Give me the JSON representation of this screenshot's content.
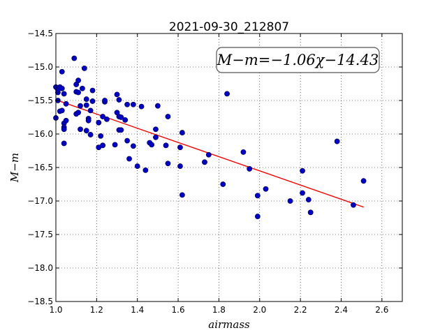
{
  "chart_data": {
    "type": "scatter",
    "title": "2021-09-30_212807",
    "xlabel": "airmass",
    "ylabel": "M−m",
    "xlim": [
      1.0,
      2.7
    ],
    "ylim": [
      -18.5,
      -14.5
    ],
    "y_inverted": true,
    "grid": true,
    "x_ticks": [
      1.0,
      1.2,
      1.4,
      1.6,
      1.8,
      2.0,
      2.2,
      2.4,
      2.6
    ],
    "x_tick_labels": [
      "1.0",
      "1.2",
      "1.4",
      "1.6",
      "1.8",
      "2.0",
      "2.2",
      "2.4",
      "2.6"
    ],
    "y_ticks": [
      -14.5,
      -15.0,
      -15.5,
      -16.0,
      -16.5,
      -17.0,
      -17.5,
      -18.0,
      -18.5
    ],
    "y_tick_labels": [
      "−14.5",
      "−15.0",
      "−15.5",
      "−16.0",
      "−16.5",
      "−17.0",
      "−17.5",
      "−18.0",
      "−18.5"
    ],
    "annotation": "M−m=−1.06χ−14.43",
    "fit": {
      "slope": -1.06,
      "intercept": -14.43,
      "x_range": [
        1.0,
        2.51
      ],
      "color": "#ff0000"
    },
    "point_color": "#0000cc",
    "points": [
      [
        1.0,
        -15.3
      ],
      [
        1.01,
        -15.5
      ],
      [
        1.01,
        -15.38
      ],
      [
        1.01,
        -15.34
      ],
      [
        1.0,
        -15.76
      ],
      [
        1.02,
        -15.3
      ],
      [
        1.02,
        -15.66
      ],
      [
        1.03,
        -15.07
      ],
      [
        1.03,
        -15.32
      ],
      [
        1.04,
        -15.4
      ],
      [
        1.03,
        -15.65
      ],
      [
        1.04,
        -15.84
      ],
      [
        1.04,
        -15.9
      ],
      [
        1.04,
        -15.93
      ],
      [
        1.05,
        -15.55
      ],
      [
        1.04,
        -16.14
      ],
      [
        1.05,
        -15.8
      ],
      [
        1.09,
        -14.87
      ],
      [
        1.1,
        -15.37
      ],
      [
        1.1,
        -15.26
      ],
      [
        1.1,
        -15.7
      ],
      [
        1.11,
        -15.2
      ],
      [
        1.11,
        -15.38
      ],
      [
        1.12,
        -15.58
      ],
      [
        1.11,
        -15.68
      ],
      [
        1.13,
        -15.32
      ],
      [
        1.12,
        -15.93
      ],
      [
        1.14,
        -15.02
      ],
      [
        1.15,
        -15.48
      ],
      [
        1.15,
        -15.57
      ],
      [
        1.15,
        -15.95
      ],
      [
        1.16,
        -15.77
      ],
      [
        1.16,
        -15.8
      ],
      [
        1.17,
        -16.01
      ],
      [
        1.17,
        -15.65
      ],
      [
        1.18,
        -15.35
      ],
      [
        1.18,
        -15.51
      ],
      [
        1.21,
        -15.83
      ],
      [
        1.21,
        -16.2
      ],
      [
        1.22,
        -16.03
      ],
      [
        1.23,
        -15.74
      ],
      [
        1.24,
        -15.52
      ],
      [
        1.24,
        -15.5
      ],
      [
        1.25,
        -15.78
      ],
      [
        1.23,
        -16.17
      ],
      [
        1.29,
        -16.16
      ],
      [
        1.3,
        -15.41
      ],
      [
        1.3,
        -15.68
      ],
      [
        1.31,
        -15.49
      ],
      [
        1.31,
        -15.94
      ],
      [
        1.31,
        -15.74
      ],
      [
        1.32,
        -15.75
      ],
      [
        1.32,
        -15.94
      ],
      [
        1.34,
        -15.79
      ],
      [
        1.35,
        -15.56
      ],
      [
        1.35,
        -16.1
      ],
      [
        1.36,
        -16.37
      ],
      [
        1.38,
        -16.18
      ],
      [
        1.38,
        -15.56
      ],
      [
        1.4,
        -16.48
      ],
      [
        1.42,
        -15.59
      ],
      [
        1.44,
        -16.54
      ],
      [
        1.46,
        -16.13
      ],
      [
        1.47,
        -16.16
      ],
      [
        1.49,
        -16.05
      ],
      [
        1.49,
        -15.93
      ],
      [
        1.5,
        -15.58
      ],
      [
        1.54,
        -16.17
      ],
      [
        1.55,
        -15.74
      ],
      [
        1.55,
        -16.44
      ],
      [
        1.61,
        -16.2
      ],
      [
        1.62,
        -15.98
      ],
      [
        1.61,
        -16.48
      ],
      [
        1.62,
        -16.91
      ],
      [
        1.73,
        -16.42
      ],
      [
        1.75,
        -16.31
      ],
      [
        1.82,
        -16.75
      ],
      [
        1.84,
        -15.4
      ],
      [
        1.92,
        -16.27
      ],
      [
        1.95,
        -16.52
      ],
      [
        1.99,
        -17.23
      ],
      [
        1.99,
        -16.92
      ],
      [
        2.03,
        -16.82
      ],
      [
        2.15,
        -17.0
      ],
      [
        2.21,
        -16.55
      ],
      [
        2.21,
        -16.88
      ],
      [
        2.24,
        -16.98
      ],
      [
        2.25,
        -17.17
      ],
      [
        2.38,
        -16.11
      ],
      [
        2.46,
        -17.06
      ],
      [
        2.51,
        -16.7
      ]
    ]
  }
}
